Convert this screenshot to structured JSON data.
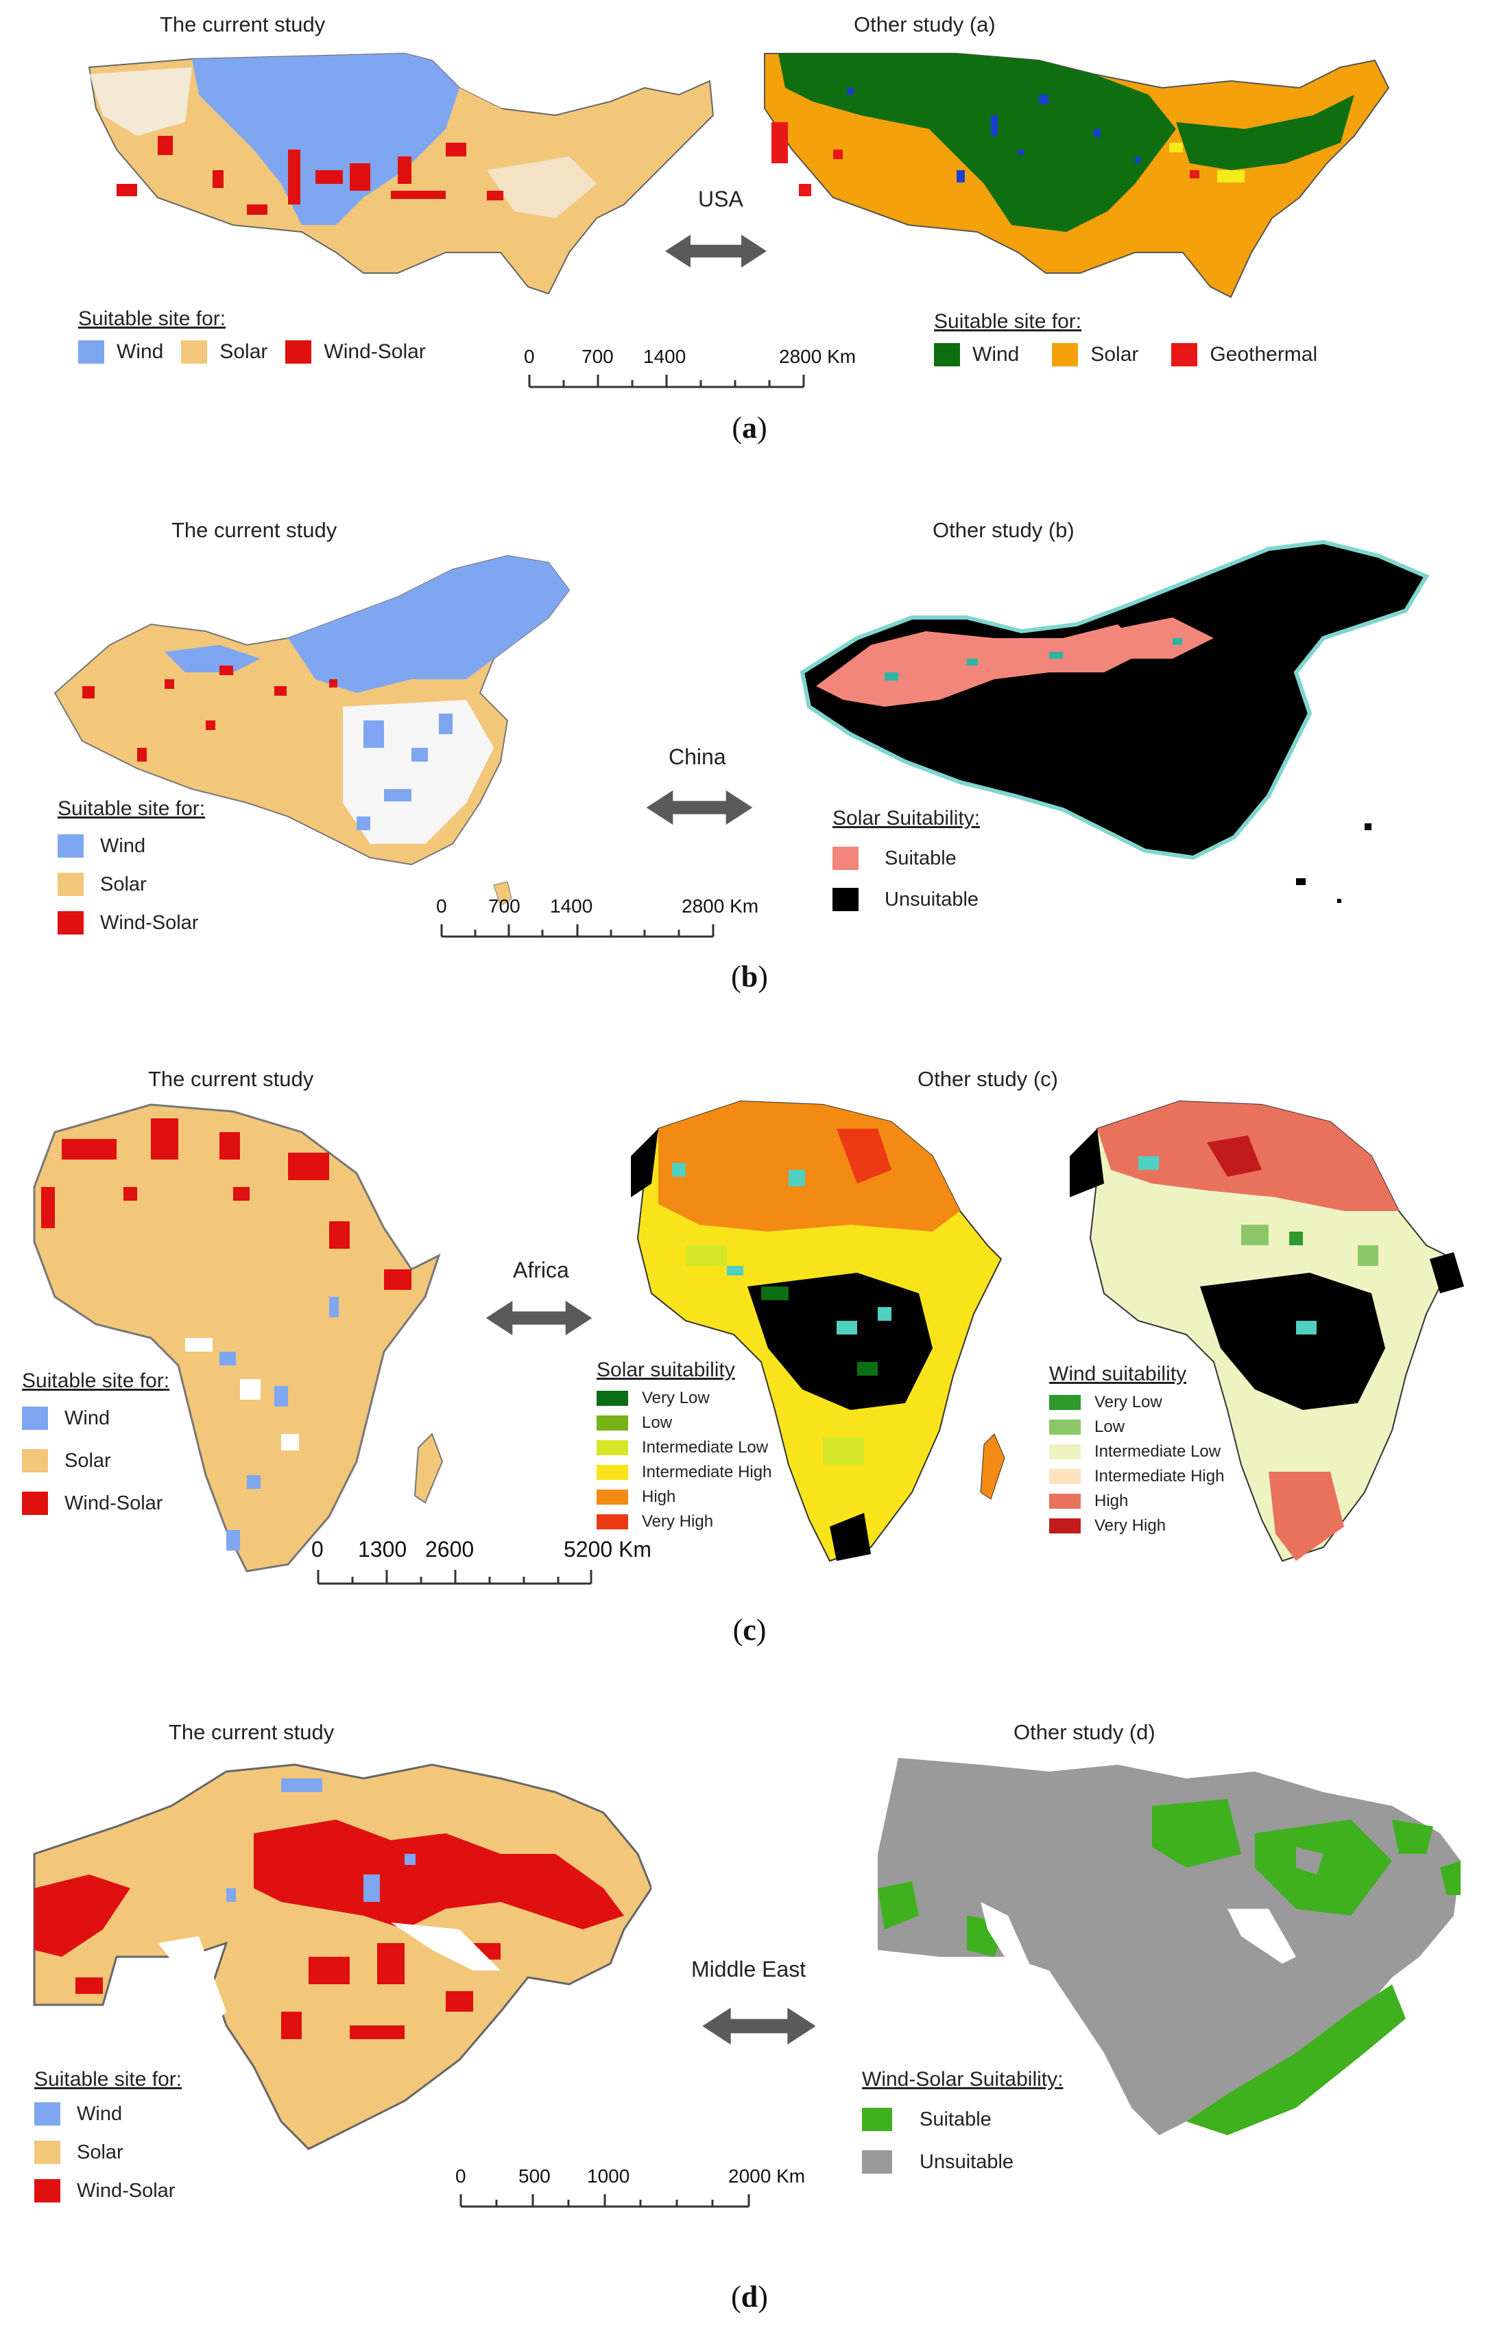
{
  "colors": {
    "wind": "#7fa6f0",
    "solar": "#f2c77a",
    "wind_solar": "#e01010",
    "usa_wind": "#0f6e0f",
    "usa_solar": "#f5a10c",
    "geothermal": "#e81818",
    "china_suitable": "#f3867a",
    "china_unsuitable": "#000000",
    "me_suitable": "#3fb01e",
    "me_unsuitable": "#9a9a9a",
    "solar_scale": [
      "#0b6e12",
      "#77b317",
      "#d6e72a",
      "#f9e41c",
      "#f28a13",
      "#ec3a14"
    ],
    "wind_scale": [
      "#2e9a2e",
      "#8cc767",
      "#eef3c2",
      "#fde2bf",
      "#e9725d",
      "#c21b1b"
    ]
  },
  "panel_a": {
    "left_title": "The current study",
    "right_title": "Other study (a)",
    "region": "USA",
    "left_legend": {
      "title": "Suitable site for:",
      "items": [
        "Wind",
        "Solar",
        "Wind-Solar"
      ]
    },
    "right_legend": {
      "title": "Suitable site for:",
      "items": [
        "Wind",
        "Solar",
        "Geothermal"
      ]
    },
    "scale": {
      "ticks": [
        "0",
        "700",
        "1400",
        "2800 Km"
      ]
    },
    "caption": "a"
  },
  "panel_b": {
    "left_title": "The current study",
    "right_title": "Other study (b)",
    "region": "China",
    "left_legend": {
      "title": "Suitable site for:",
      "items": [
        "Wind",
        "Solar",
        "Wind-Solar"
      ]
    },
    "right_legend": {
      "title": "Solar Suitability:",
      "items": [
        "Suitable",
        "Unsuitable"
      ]
    },
    "scale": {
      "ticks": [
        "0",
        "700",
        "1400",
        "2800 Km"
      ]
    },
    "caption": "b"
  },
  "panel_c": {
    "left_title": "The current study",
    "right_title": "Other study (c)",
    "region": "Africa",
    "left_legend": {
      "title": "Suitable site for:",
      "items": [
        "Wind",
        "Solar",
        "Wind-Solar"
      ]
    },
    "solar_legend": {
      "title": "Solar suitability",
      "items": [
        "Very Low",
        "Low",
        "Intermediate Low",
        "Intermediate High",
        "High",
        "Very High"
      ]
    },
    "wind_legend": {
      "title": "Wind suitability",
      "items": [
        "Very Low",
        "Low",
        "Intermediate Low",
        "Intermediate High",
        "High",
        "Very High"
      ]
    },
    "scale": {
      "ticks": [
        "0",
        "1300",
        "2600",
        "5200 Km"
      ]
    },
    "caption": "c"
  },
  "panel_d": {
    "left_title": "The current study",
    "right_title": "Other study (d)",
    "region": "Middle East",
    "left_legend": {
      "title": "Suitable site for:",
      "items": [
        "Wind",
        "Solar",
        "Wind-Solar"
      ]
    },
    "right_legend": {
      "title": "Wind-Solar Suitability:",
      "items": [
        "Suitable",
        "Unsuitable"
      ]
    },
    "scale": {
      "ticks": [
        "0",
        "500",
        "1000",
        "2000 Km"
      ]
    },
    "caption": "d"
  }
}
